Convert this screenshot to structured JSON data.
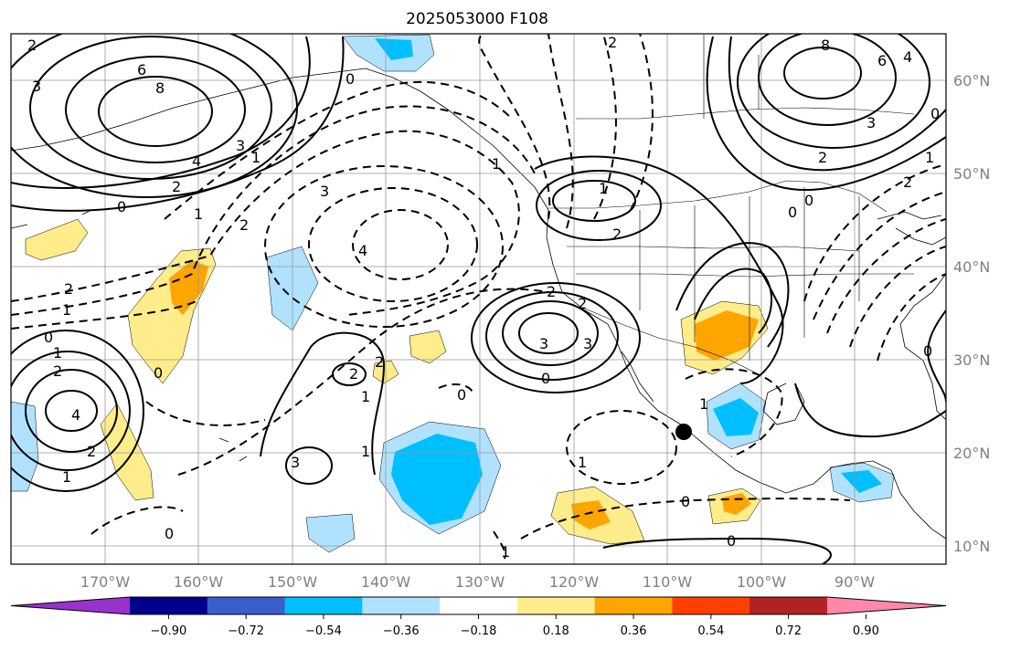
{
  "title": "2025053000 F108",
  "map": {
    "lon_labels": [
      "170°W",
      "160°W",
      "150°W",
      "140°W",
      "130°W",
      "120°W",
      "110°W",
      "100°W",
      "90°W"
    ],
    "lat_labels": [
      "60°N",
      "50°N",
      "40°N",
      "30°N",
      "20°N",
      "10°N"
    ],
    "contour_labels": [
      "2",
      "3",
      "6",
      "8",
      "4",
      "3",
      "2",
      "1",
      "0",
      "1",
      "2",
      "3",
      "4",
      "2",
      "1",
      "0",
      "1",
      "2",
      "3",
      "4",
      "2",
      "1",
      "0",
      "0",
      "1",
      "2",
      "3",
      "2",
      "1",
      "0",
      "2",
      "2",
      "3",
      "3",
      "0",
      "0",
      "1",
      "2",
      "1",
      "0",
      "1",
      "0",
      "0",
      "2",
      "1",
      "0",
      "0",
      "2",
      "1",
      "2",
      "8",
      "6",
      "4",
      "3",
      "2",
      "1",
      "0"
    ],
    "marker": "filled-circle"
  },
  "colorbar": {
    "tick_labels": [
      "−0.90",
      "−0.72",
      "−0.54",
      "−0.36",
      "−0.18",
      "0.18",
      "0.36",
      "0.54",
      "0.72",
      "0.90"
    ],
    "colors": [
      "#9932cc",
      "#00008b",
      "#3a5fcd",
      "#00bfff",
      "#b0e2ff",
      "#ffffff",
      "#ffec8b",
      "#ffa500",
      "#ff4000",
      "#b22222",
      "#ff88aa"
    ]
  }
}
